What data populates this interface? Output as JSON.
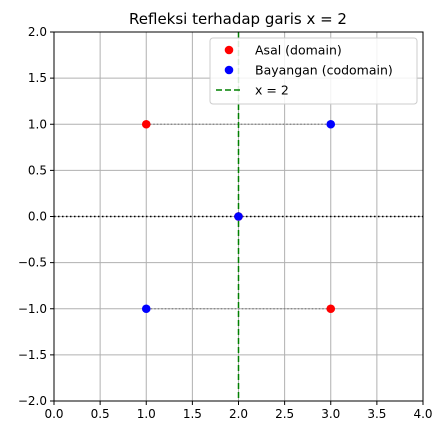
{
  "chart_data": {
    "type": "scatter",
    "title": "Refleksi terhadap garis x = 2",
    "xlabel": "",
    "ylabel": "",
    "xlim": [
      0.0,
      4.0
    ],
    "ylim": [
      -2.0,
      2.0
    ],
    "grid": true,
    "legend_position": "top-right",
    "xticks": [
      0.0,
      0.5,
      1.0,
      1.5,
      2.0,
      2.5,
      3.0,
      3.5,
      4.0
    ],
    "yticks": [
      -2.0,
      -1.5,
      -1.0,
      -0.5,
      0.0,
      0.5,
      1.0,
      1.5,
      2.0
    ],
    "xtick_labels": [
      "0.0",
      "0.5",
      "1.0",
      "1.5",
      "2.0",
      "2.5",
      "3.0",
      "3.5",
      "4.0"
    ],
    "ytick_labels": [
      "−2.0",
      "−1.5",
      "−1.0",
      "−0.5",
      "0.0",
      "0.5",
      "1.0",
      "1.5",
      "2.0"
    ],
    "series": [
      {
        "name": "Asal (domain)",
        "color": "#ff0000",
        "points": [
          [
            1,
            1
          ],
          [
            2,
            0
          ],
          [
            3,
            -1
          ]
        ]
      },
      {
        "name": "Bayangan (codomain)",
        "color": "#0000ff",
        "points": [
          [
            3,
            1
          ],
          [
            2,
            0
          ],
          [
            1,
            -1
          ]
        ]
      }
    ],
    "reference_line": {
      "name": "x = 2",
      "x": 2,
      "color": "#008000",
      "style": "dashed"
    },
    "horizontal_line": {
      "y": 0,
      "color": "#000000",
      "style": "dotted"
    },
    "connectors": [
      {
        "from": [
          1,
          1
        ],
        "to": [
          3,
          1
        ]
      },
      {
        "from": [
          2,
          0
        ],
        "to": [
          2,
          0
        ]
      },
      {
        "from": [
          3,
          -1
        ],
        "to": [
          1,
          -1
        ]
      }
    ],
    "connector_color": "#808080"
  }
}
